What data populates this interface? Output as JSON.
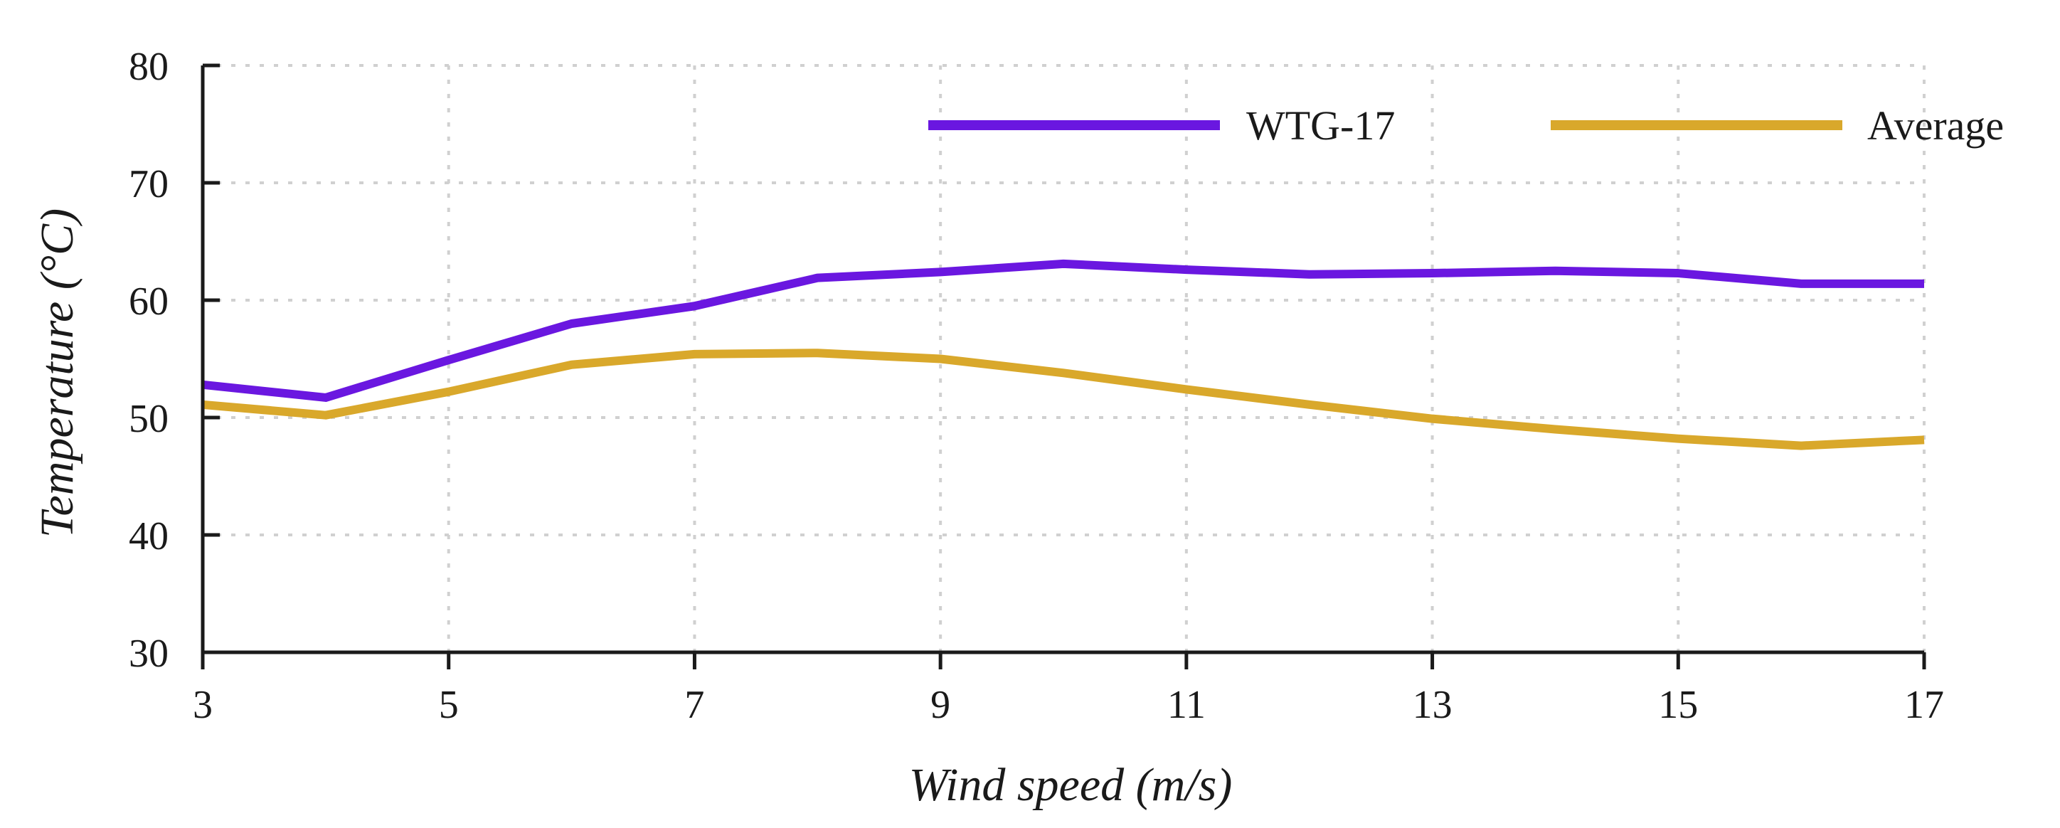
{
  "chart_data": {
    "type": "line",
    "title": "",
    "xlabel": "Wind speed (m/s)",
    "ylabel": "Temperature (°C)",
    "xlim": [
      3,
      17
    ],
    "ylim": [
      30,
      80
    ],
    "xticks": [
      3,
      5,
      7,
      9,
      11,
      13,
      15,
      17
    ],
    "yticks": [
      30,
      40,
      50,
      60,
      70,
      80
    ],
    "xticks_labels": [
      "3",
      "5",
      "7",
      "9",
      "11",
      "13",
      "15",
      "17"
    ],
    "yticks_labels": [
      "30",
      "40",
      "50",
      "60",
      "70",
      "80"
    ],
    "grid": true,
    "legend_position": "top",
    "x": [
      3,
      4,
      5,
      6,
      7,
      8,
      9,
      10,
      11,
      12,
      13,
      14,
      15,
      16,
      17
    ],
    "series": [
      {
        "name": "WTG-17",
        "color": "#6A17E0",
        "values": [
          52.8,
          51.7,
          54.9,
          58.0,
          59.5,
          61.9,
          62.4,
          63.1,
          62.6,
          62.2,
          62.3,
          62.5,
          62.3,
          61.4,
          61.4
        ]
      },
      {
        "name": "Average",
        "color": "#D9A82B",
        "values": [
          51.1,
          50.2,
          52.2,
          54.5,
          55.4,
          55.5,
          55.0,
          53.8,
          52.4,
          51.1,
          49.9,
          49.0,
          48.2,
          47.6,
          48.1
        ]
      }
    ]
  }
}
